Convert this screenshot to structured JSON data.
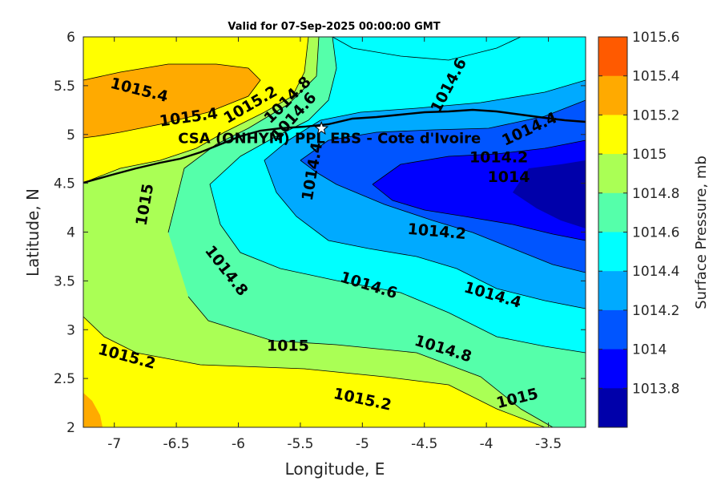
{
  "chart_data": {
    "type": "contour",
    "title": "Valid for 07-Sep-2025 00:00:00 GMT",
    "xlabel": "Longitude, E",
    "ylabel": "Latitude, N",
    "xlim": [
      -7.25,
      -3.2
    ],
    "ylim": [
      2,
      6
    ],
    "xticks": [
      "-7",
      "-6.5",
      "-6",
      "-5.5",
      "-5",
      "-4.5",
      "-4",
      "-3.5"
    ],
    "xtick_values": [
      -7,
      -6.5,
      -6,
      -5.5,
      -5,
      -4.5,
      -4,
      -3.5
    ],
    "yticks": [
      "2",
      "2.5",
      "3",
      "3.5",
      "4",
      "4.5",
      "5",
      "5.5",
      "6"
    ],
    "ytick_values": [
      2,
      2.5,
      3,
      3.5,
      4,
      4.5,
      5,
      5.5,
      6
    ],
    "colorbar": {
      "label": "Surface Pressure, mb",
      "ticks": [
        "1015.6",
        "1015.4",
        "1015.2",
        "1015",
        "1014.8",
        "1014.6",
        "1014.4",
        "1014.2",
        "1014",
        "1013.8"
      ],
      "levels": [
        {
          "from": 1015.4,
          "to": 1015.6,
          "color": "#ff5a00"
        },
        {
          "from": 1015.2,
          "to": 1015.4,
          "color": "#ffaa00"
        },
        {
          "from": 1015.0,
          "to": 1015.2,
          "color": "#ffff00"
        },
        {
          "from": 1014.8,
          "to": 1015.0,
          "color": "#aaff55"
        },
        {
          "from": 1014.6,
          "to": 1014.8,
          "color": "#55ffaa"
        },
        {
          "from": 1014.4,
          "to": 1014.6,
          "color": "#00ffff"
        },
        {
          "from": 1014.2,
          "to": 1014.4,
          "color": "#00aaff"
        },
        {
          "from": 1014.0,
          "to": 1014.2,
          "color": "#0055ff"
        },
        {
          "from": 1013.8,
          "to": 1014.0,
          "color": "#0000ff"
        },
        {
          "from": 1013.6,
          "to": 1013.8,
          "color": "#0000aa"
        }
      ]
    },
    "contour_labels": [
      {
        "text": "1015.4",
        "x": -6.8,
        "y": 5.45
      },
      {
        "text": "1015.4",
        "x": -6.4,
        "y": 5.17
      },
      {
        "text": "1015.2",
        "x": -5.9,
        "y": 5.3
      },
      {
        "text": "1014.8",
        "x": -5.6,
        "y": 5.35
      },
      {
        "text": "1014.6",
        "x": -5.55,
        "y": 5.18
      },
      {
        "text": "1014.6",
        "x": -4.3,
        "y": 5.5
      },
      {
        "text": "1014.4",
        "x": -3.65,
        "y": 5.05
      },
      {
        "text": "1014.2",
        "x": -3.9,
        "y": 4.76
      },
      {
        "text": "1014",
        "x": -3.82,
        "y": 4.56
      },
      {
        "text": "1014.4",
        "x": -5.4,
        "y": 4.62
      },
      {
        "text": "1015",
        "x": -6.75,
        "y": 4.28
      },
      {
        "text": "1014.2",
        "x": -4.4,
        "y": 4.0
      },
      {
        "text": "1014.8",
        "x": -6.1,
        "y": 3.6
      },
      {
        "text": "1014.6",
        "x": -4.95,
        "y": 3.45
      },
      {
        "text": "1014.4",
        "x": -3.95,
        "y": 3.35
      },
      {
        "text": "1014.8",
        "x": -4.35,
        "y": 2.8
      },
      {
        "text": "1015",
        "x": -5.6,
        "y": 2.83
      },
      {
        "text": "1015.2",
        "x": -6.9,
        "y": 2.72
      },
      {
        "text": "1015.2",
        "x": -5.0,
        "y": 2.28
      },
      {
        "text": "1015",
        "x": -3.75,
        "y": 2.29
      }
    ],
    "site": {
      "label": "CSA (ONHYM) PPL EBS  - Cote d'Ivoire",
      "x": -5.33,
      "y": 5.06
    },
    "grid": false
  }
}
